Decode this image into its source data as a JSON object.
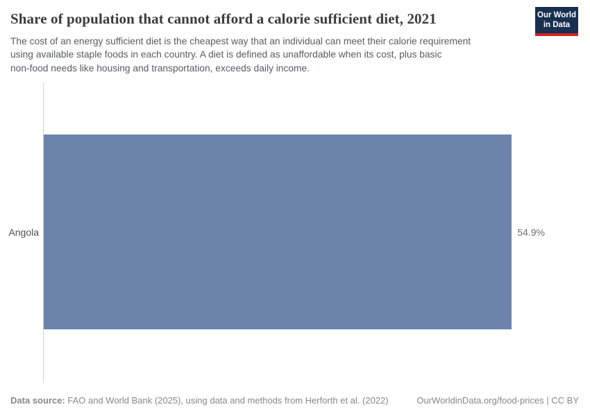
{
  "header": {
    "title": "Share of population that cannot afford a calorie sufficient diet, 2021",
    "subtitle_lines": [
      "The cost of an energy sufficient diet is the cheapest way that an individual can meet their calorie requirement",
      "using available staple foods in each country. A diet is defined as unaffordable when its cost, plus basic",
      "non-food needs like housing and transportation, exceeds daily income."
    ]
  },
  "logo": {
    "line1": "Our World",
    "line2": "in Data",
    "bg_color": "#18304f",
    "stripe_color": "#cf2722"
  },
  "chart_data": {
    "type": "bar",
    "orientation": "horizontal",
    "title": "Share of population that cannot afford a calorie sufficient diet, 2021",
    "categories": [
      "Angola"
    ],
    "values": [
      54.9
    ],
    "value_labels": [
      "54.9%"
    ],
    "unit": "%",
    "xlim": [
      0,
      54.9
    ],
    "bar_color": "#6c84ac",
    "axis_line_color": "#d5d5d5",
    "grid": false,
    "legend": false
  },
  "footer": {
    "source_label": "Data source:",
    "source_text": " FAO and World Bank (2025), using data and methods from Herforth et al. (2022)",
    "right_text": "OurWorldinData.org/food-prices | CC BY"
  }
}
